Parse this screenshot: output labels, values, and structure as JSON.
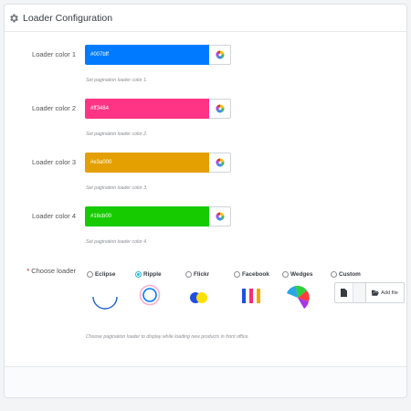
{
  "panel": {
    "title": "Loader Configuration",
    "icon": "gear-icon"
  },
  "colors": [
    {
      "label": "Loader color 1",
      "value": "#007bff",
      "hex": "#007bff",
      "help": "Set pagination loader color 1."
    },
    {
      "label": "Loader color 2",
      "value": "#ff3484",
      "hex": "#ff3484",
      "help": "Set pagination loader color 2."
    },
    {
      "label": "Loader color 3",
      "value": "#e3a000",
      "hex": "#e3a000",
      "help": "Set pagination loader color 3."
    },
    {
      "label": "Loader color 4",
      "value": "#16cb00",
      "hex": "#16cb00",
      "help": "Set pagination loader color 4."
    }
  ],
  "loader": {
    "required_mark": "*",
    "label": "Choose loader",
    "options": [
      "Eclipse",
      "Ripple",
      "Flickr",
      "Facebook",
      "Wedges",
      "Custom"
    ],
    "selected": "Ripple",
    "add_file_label": "Add file",
    "help": "Choose pagination loader to display while loading new products in front office."
  }
}
